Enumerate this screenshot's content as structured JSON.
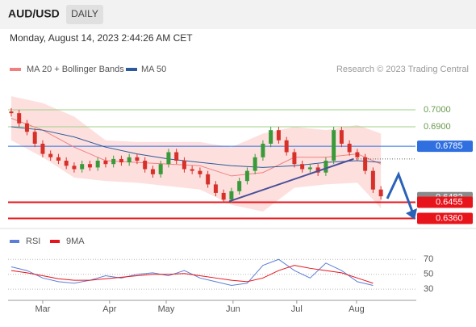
{
  "header": {
    "symbol": "AUD/USD",
    "period": "DAILY",
    "timestamp": "Monday, August 14, 2023 2:44:26 AM CET"
  },
  "chart_data": [
    {
      "type": "candlestick",
      "legend": [
        "MA 20 + Bollinger Bands",
        "MA 50"
      ],
      "credit": "Research © 2023 Trading Central",
      "xlim": [
        -0.2,
        47.5
      ],
      "ylim": [
        0.6305,
        0.7076
      ],
      "xticks": [
        {
          "value": 4,
          "label": "Mar"
        },
        {
          "value": 12.5,
          "label": "Apr"
        },
        {
          "value": 19.7,
          "label": "May"
        },
        {
          "value": 28.2,
          "label": "Jun"
        },
        {
          "value": 36.3,
          "label": "Jul"
        },
        {
          "value": 43.9,
          "label": "Aug"
        }
      ],
      "open": [
        0.699,
        0.698,
        0.692,
        0.687,
        0.68,
        0.674,
        0.672,
        0.67,
        0.667,
        0.665,
        0.668,
        0.666,
        0.67,
        0.668,
        0.671,
        0.669,
        0.672,
        0.67,
        0.665,
        0.662,
        0.668,
        0.675,
        0.67,
        0.665,
        0.664,
        0.662,
        0.656,
        0.651,
        0.647,
        0.652,
        0.658,
        0.664,
        0.672,
        0.68,
        0.688,
        0.682,
        0.675,
        0.668,
        0.665,
        0.666,
        0.663,
        0.67,
        0.688,
        0.68,
        0.675,
        0.672,
        0.664,
        0.653
      ],
      "high": [
        0.701,
        0.7,
        0.694,
        0.689,
        0.682,
        0.676,
        0.674,
        0.672,
        0.669,
        0.67,
        0.67,
        0.672,
        0.672,
        0.673,
        0.673,
        0.674,
        0.674,
        0.672,
        0.667,
        0.67,
        0.677,
        0.677,
        0.672,
        0.667,
        0.666,
        0.664,
        0.658,
        0.653,
        0.654,
        0.66,
        0.666,
        0.674,
        0.682,
        0.69,
        0.69,
        0.684,
        0.677,
        0.67,
        0.668,
        0.668,
        0.672,
        0.69,
        0.69,
        0.682,
        0.677,
        0.674,
        0.666,
        0.655
      ],
      "low": [
        0.696,
        0.69,
        0.685,
        0.678,
        0.672,
        0.67,
        0.668,
        0.665,
        0.663,
        0.663,
        0.664,
        0.664,
        0.666,
        0.666,
        0.667,
        0.667,
        0.668,
        0.663,
        0.66,
        0.66,
        0.666,
        0.668,
        0.663,
        0.662,
        0.66,
        0.654,
        0.649,
        0.645,
        0.645,
        0.65,
        0.656,
        0.662,
        0.67,
        0.678,
        0.68,
        0.673,
        0.666,
        0.663,
        0.663,
        0.661,
        0.661,
        0.668,
        0.678,
        0.673,
        0.67,
        0.662,
        0.651,
        0.647
      ],
      "close": [
        0.698,
        0.692,
        0.687,
        0.68,
        0.674,
        0.672,
        0.67,
        0.667,
        0.665,
        0.668,
        0.666,
        0.67,
        0.668,
        0.671,
        0.669,
        0.672,
        0.67,
        0.665,
        0.662,
        0.668,
        0.675,
        0.67,
        0.665,
        0.664,
        0.662,
        0.656,
        0.651,
        0.647,
        0.652,
        0.658,
        0.664,
        0.672,
        0.68,
        0.688,
        0.682,
        0.675,
        0.668,
        0.665,
        0.666,
        0.663,
        0.67,
        0.688,
        0.68,
        0.675,
        0.672,
        0.664,
        0.653,
        0.649
      ],
      "up_color": "#3a9a3a",
      "down_color": "#d7302a",
      "overlay_x": [
        0,
        4,
        8,
        12,
        16,
        20,
        24,
        28,
        32,
        36,
        40,
        44,
        47
      ],
      "bb_upper": [
        0.708,
        0.704,
        0.696,
        0.682,
        0.681,
        0.681,
        0.681,
        0.678,
        0.686,
        0.69,
        0.688,
        0.691,
        0.686
      ],
      "bb_lower": [
        0.682,
        0.672,
        0.66,
        0.658,
        0.657,
        0.655,
        0.653,
        0.644,
        0.64,
        0.654,
        0.656,
        0.657,
        0.642
      ],
      "ma20": [
        0.695,
        0.688,
        0.678,
        0.67,
        0.669,
        0.668,
        0.667,
        0.661,
        0.663,
        0.672,
        0.672,
        0.674,
        0.668
      ],
      "ma50": [
        0.69,
        0.688,
        0.684,
        0.678,
        0.674,
        0.671,
        0.669,
        0.667,
        0.666,
        0.667,
        0.669,
        0.67,
        0.669
      ],
      "ma20_color": "#f08080",
      "ma50_color": "#2c5a9a",
      "band_color": "#fde0de",
      "levels": [
        {
          "value": 0.7,
          "label": "0.7000",
          "color": "#9fd08a",
          "style": "thin"
        },
        {
          "value": 0.69,
          "label": "0.6900",
          "color": "#9fd08a",
          "style": "thin"
        },
        {
          "value": 0.6785,
          "label": "0.6785",
          "color": "#2f6fe0",
          "style": "box"
        },
        {
          "value": 0.6482,
          "label": "0.6482",
          "color": "#8a8a8a",
          "style": "box"
        },
        {
          "value": 0.6455,
          "label": "0.6455",
          "color": "#e8141c",
          "style": "box"
        },
        {
          "value": 0.636,
          "label": "0.6360",
          "color": "#e8141c",
          "style": "box"
        }
      ],
      "trendline": {
        "x": [
          27.7,
          43.5
        ],
        "y": [
          0.646,
          0.671
        ]
      }
    },
    {
      "type": "line",
      "legend_colors": [
        "#5b7fd6",
        "#e8141c"
      ],
      "ylim": [
        15,
        93
      ],
      "yticks": [
        30,
        50,
        70
      ],
      "series": [
        {
          "name": "RSI",
          "color": "#5b7fd6",
          "x": [
            0,
            2,
            4,
            6,
            8,
            10,
            12,
            14,
            16,
            18,
            20,
            22,
            24,
            26,
            28,
            30,
            32,
            34,
            36,
            38,
            40,
            42,
            44,
            46
          ],
          "values": [
            60,
            55,
            45,
            40,
            38,
            42,
            48,
            45,
            50,
            52,
            48,
            55,
            45,
            40,
            35,
            38,
            62,
            70,
            55,
            45,
            65,
            55,
            40,
            35
          ]
        },
        {
          "name": "9MA",
          "color": "#e8141c",
          "x": [
            0,
            2,
            4,
            6,
            8,
            10,
            12,
            14,
            16,
            18,
            20,
            22,
            24,
            26,
            28,
            30,
            32,
            34,
            36,
            38,
            40,
            42,
            44,
            46
          ],
          "values": [
            55,
            52,
            48,
            44,
            42,
            42,
            44,
            46,
            48,
            50,
            50,
            51,
            48,
            45,
            42,
            40,
            45,
            55,
            62,
            58,
            55,
            52,
            45,
            38
          ]
        }
      ]
    }
  ]
}
